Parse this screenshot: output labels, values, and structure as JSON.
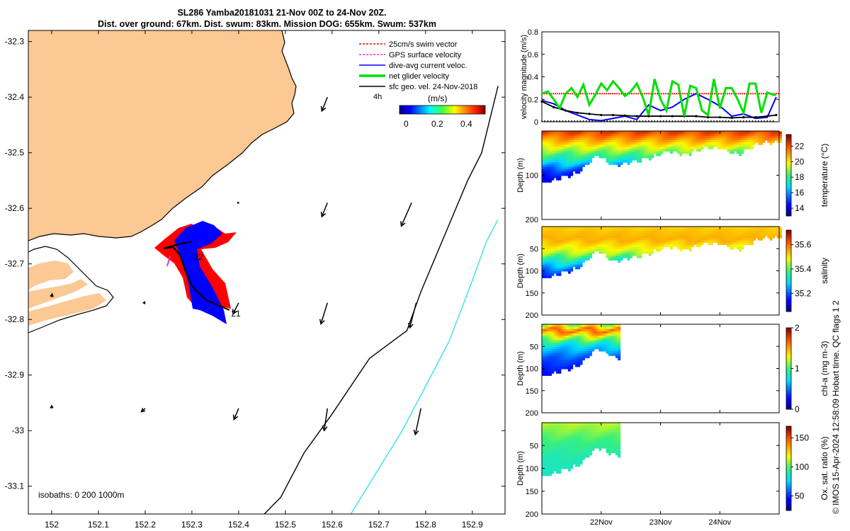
{
  "title_line1": "SL286 Yamba20181031 21-Nov 00Z to 24-Nov 20Z.",
  "title_line2": "Dist. over ground: 67km. Dist. swum: 83km. Mission DOG: 655km. Swum: 537km",
  "side_stamp": "© IMOS 15-Apr-2024 12:58:09 Hobart time. QC flags 1  2",
  "colors": {
    "land": "#fcc893",
    "coast": "#000000",
    "iso200": "#000000",
    "iso1000": "#3ae0e8",
    "swim": "#ff0000",
    "gps": "#ff22dd",
    "current": "#0000ff",
    "net": "#00e000",
    "geo": "#000000"
  },
  "chart_data": [
    {
      "id": "map",
      "type": "scatter",
      "xlim": [
        151.95,
        152.97
      ],
      "ylim": [
        -33.15,
        -32.28
      ],
      "xticks": [
        "152",
        "152.1",
        "152.2",
        "152.3",
        "152.4",
        "152.5",
        "152.6",
        "152.7",
        "152.8",
        "152.9"
      ],
      "yticks": [
        "-32.3",
        "-32.4",
        "-32.5",
        "-32.6",
        "-32.7",
        "-32.8",
        "-32.9",
        "-33",
        "-33.1"
      ],
      "legend": [
        {
          "label": "25cm/s swim vector",
          "color": "#ff0000",
          "dashed": true
        },
        {
          "label": "GPS surface velocity",
          "color": "#ff22dd",
          "dashed": true
        },
        {
          "label": "dive-avg current veloc.",
          "color": "#0000ff",
          "dashed": false
        },
        {
          "label": "net glider velocity",
          "color": "#00e000",
          "dashed": false
        },
        {
          "label": "sfc geo. vel. 24-Nov-2018",
          "color": "#000000",
          "dashed": false
        }
      ],
      "legend_extra": "4h",
      "colorbar_title": "(m/s)",
      "colorbar_ticks": [
        "0",
        "0.2",
        "0.4"
      ],
      "isobaths_label": "isobaths: 0   200  1000m",
      "track_labels": [
        {
          "text": "22",
          "lon": 152.31,
          "lat": -32.685
        },
        {
          "text": "21",
          "lon": 152.39,
          "lat": -32.787
        }
      ],
      "glider_track": [
        [
          152.38,
          -32.783
        ],
        [
          152.33,
          -32.765
        ],
        [
          152.3,
          -32.74
        ],
        [
          152.285,
          -32.71
        ],
        [
          152.275,
          -32.685
        ],
        [
          152.26,
          -32.67
        ],
        [
          152.24,
          -32.672
        ],
        [
          152.27,
          -32.665
        ],
        [
          152.3,
          -32.66
        ]
      ],
      "geo_arrows": [
        {
          "lon": 152.59,
          "lat": -32.4,
          "dlon": -0.012,
          "dlat": -0.025
        },
        {
          "lon": 152.59,
          "lat": -32.59,
          "dlon": -0.012,
          "dlat": -0.025
        },
        {
          "lon": 152.77,
          "lat": -32.59,
          "dlon": -0.022,
          "dlat": -0.042
        },
        {
          "lon": 152.4,
          "lat": -32.77,
          "dlon": -0.012,
          "dlat": -0.02
        },
        {
          "lon": 152.59,
          "lat": -32.77,
          "dlon": -0.014,
          "dlat": -0.038
        },
        {
          "lon": 152.78,
          "lat": -32.77,
          "dlon": -0.014,
          "dlat": -0.045
        },
        {
          "lon": 152.0,
          "lat": -32.96,
          "dlon": 0.0,
          "dlat": 0.005
        },
        {
          "lon": 152.2,
          "lat": -32.96,
          "dlon": -0.008,
          "dlat": -0.006
        },
        {
          "lon": 152.4,
          "lat": -32.96,
          "dlon": -0.01,
          "dlat": -0.02
        },
        {
          "lon": 152.59,
          "lat": -32.96,
          "dlon": -0.007,
          "dlat": -0.04
        },
        {
          "lon": 152.79,
          "lat": -32.96,
          "dlon": -0.012,
          "dlat": -0.047
        },
        {
          "lon": 152.0,
          "lat": -32.76,
          "dlon": 0.001,
          "dlat": 0.006
        },
        {
          "lon": 152.2,
          "lat": -32.77,
          "dlon": -0.004,
          "dlat": 0.0
        },
        {
          "lon": 152.4,
          "lat": -32.59,
          "dlon": 0.0,
          "dlat": 0.0
        }
      ],
      "isobath_200": [
        [
          152.455,
          -33.15
        ],
        [
          152.49,
          -33.12
        ],
        [
          152.54,
          -33.04
        ],
        [
          152.6,
          -32.97
        ],
        [
          152.68,
          -32.87
        ],
        [
          152.76,
          -32.82
        ],
        [
          152.79,
          -32.75
        ],
        [
          152.89,
          -32.55
        ],
        [
          152.92,
          -32.5
        ],
        [
          152.955,
          -32.38
        ]
      ],
      "isobath_1000": [
        [
          152.64,
          -33.15
        ],
        [
          152.75,
          -33.0
        ],
        [
          152.85,
          -32.84
        ],
        [
          152.9,
          -32.73
        ],
        [
          152.93,
          -32.66
        ],
        [
          152.955,
          -32.62
        ]
      ]
    },
    {
      "id": "velocity",
      "type": "line",
      "ylabel": "velocity magnitude (m/s)",
      "xlim": [
        21.0,
        25.0
      ],
      "ylim": [
        0,
        0.8
      ],
      "yticks": [
        "0",
        "0.2",
        "0.4",
        "0.6",
        "0.8"
      ],
      "series": [
        {
          "color": "#ff0000",
          "dashed": true,
          "x": [
            21.0,
            25.0
          ],
          "y": [
            0.25,
            0.25
          ]
        },
        {
          "color": "#0000ff",
          "x": [
            21.0,
            21.2,
            21.4,
            21.6,
            21.8,
            22.0,
            22.2,
            22.4,
            22.6,
            22.8,
            23.0,
            23.2,
            23.4,
            23.6,
            23.8,
            24.0,
            24.2,
            24.4,
            24.6,
            24.8,
            24.95
          ],
          "y": [
            0.19,
            0.16,
            0.1,
            0.06,
            0.02,
            0.01,
            0.03,
            0.05,
            0.02,
            0.15,
            0.1,
            0.13,
            0.2,
            0.25,
            0.2,
            0.14,
            0.05,
            0.07,
            0.03,
            0.04,
            0.22
          ]
        },
        {
          "color": "#000000",
          "x": [
            21.0,
            21.2,
            21.4,
            21.6,
            21.8,
            22.0,
            22.2,
            22.4,
            22.6,
            22.8,
            23.0,
            23.2,
            23.4,
            23.6,
            23.8,
            24.0,
            24.2,
            24.4,
            24.6,
            24.8,
            24.95
          ],
          "y": [
            0.18,
            0.13,
            0.1,
            0.08,
            0.07,
            0.06,
            0.06,
            0.055,
            0.05,
            0.05,
            0.05,
            0.05,
            0.05,
            0.05,
            0.04,
            0.04,
            0.035,
            0.04,
            0.04,
            0.05,
            0.06
          ]
        },
        {
          "color": "#00e000",
          "x": [
            21.0,
            21.1,
            21.2,
            21.3,
            21.4,
            21.5,
            21.6,
            21.7,
            21.8,
            21.9,
            22.0,
            22.1,
            22.2,
            22.3,
            22.4,
            22.5,
            22.6,
            22.7,
            22.8,
            22.9,
            23.0,
            23.1,
            23.2,
            23.3,
            23.4,
            23.5,
            23.6,
            23.7,
            23.8,
            23.9,
            24.0,
            24.1,
            24.2,
            24.3,
            24.4,
            24.5,
            24.6,
            24.7,
            24.8,
            24.9,
            24.95
          ],
          "y": [
            0.25,
            0.27,
            0.2,
            0.12,
            0.25,
            0.3,
            0.22,
            0.33,
            0.15,
            0.24,
            0.34,
            0.28,
            0.36,
            0.3,
            0.23,
            0.27,
            0.34,
            0.22,
            0.06,
            0.38,
            0.2,
            0.1,
            0.36,
            0.33,
            0.05,
            0.32,
            0.3,
            0.1,
            0.06,
            0.38,
            0.12,
            0.3,
            0.3,
            0.2,
            0.08,
            0.34,
            0.34,
            0.08,
            0.26,
            0.24,
            0.24
          ]
        }
      ]
    },
    {
      "id": "temperature",
      "type": "heatmap",
      "ylabel": "Depth (m)",
      "cbar_label": "temperature (°C)",
      "ylim": [
        0,
        200
      ],
      "yticks": [
        "100",
        "200"
      ],
      "clim": [
        13,
        23.5
      ],
      "cticks": [
        "14",
        "16",
        "18",
        "20",
        "22"
      ],
      "cmap": "parula",
      "x_end": 25.0,
      "depth_profile": [
        [
          21.0,
          120
        ],
        [
          21.3,
          105
        ],
        [
          21.6,
          95
        ],
        [
          21.9,
          55
        ],
        [
          22.2,
          80
        ],
        [
          22.5,
          70
        ],
        [
          22.8,
          62
        ],
        [
          23.1,
          45
        ],
        [
          23.4,
          55
        ],
        [
          23.7,
          40
        ],
        [
          24.0,
          40
        ],
        [
          24.3,
          55
        ],
        [
          24.6,
          30
        ],
        [
          24.9,
          25
        ]
      ],
      "layers": [
        [
          0,
          22.5
        ],
        [
          20,
          21
        ],
        [
          45,
          19
        ],
        [
          70,
          17
        ],
        [
          90,
          15
        ],
        [
          120,
          13.5
        ]
      ]
    },
    {
      "id": "salinity",
      "type": "heatmap",
      "ylabel": "Depth (m)",
      "cbar_label": "salinity",
      "ylim": [
        0,
        200
      ],
      "yticks": [
        "50",
        "100",
        "150",
        "200"
      ],
      "clim": [
        35.05,
        35.72
      ],
      "cticks": [
        "35.2",
        "35.4",
        "35.6"
      ],
      "cmap": "parula",
      "x_end": 25.0,
      "depth_profile": [
        [
          21.0,
          120
        ],
        [
          21.3,
          105
        ],
        [
          21.6,
          95
        ],
        [
          21.9,
          55
        ],
        [
          22.2,
          80
        ],
        [
          22.5,
          70
        ],
        [
          22.8,
          62
        ],
        [
          23.1,
          45
        ],
        [
          23.4,
          55
        ],
        [
          23.7,
          40
        ],
        [
          24.0,
          40
        ],
        [
          24.3,
          55
        ],
        [
          24.6,
          30
        ],
        [
          24.9,
          25
        ]
      ],
      "layers": [
        [
          0,
          35.52
        ],
        [
          30,
          35.55
        ],
        [
          60,
          35.45
        ],
        [
          80,
          35.32
        ],
        [
          100,
          35.2
        ],
        [
          120,
          35.1
        ]
      ]
    },
    {
      "id": "chla",
      "type": "heatmap",
      "ylabel": "Depth (m)",
      "cbar_label": "chl-a (mg m-3)",
      "ylim": [
        0,
        200
      ],
      "yticks": [
        "50",
        "100",
        "150",
        "200"
      ],
      "clim": [
        0,
        2
      ],
      "cticks": [
        "0",
        "1",
        "2"
      ],
      "cmap": "parula",
      "x_end": 22.28,
      "depth_profile": [
        [
          21.0,
          120
        ],
        [
          21.3,
          105
        ],
        [
          21.6,
          95
        ],
        [
          21.9,
          55
        ],
        [
          22.28,
          80
        ]
      ],
      "layers": [
        [
          0,
          1.1
        ],
        [
          15,
          1.7
        ],
        [
          30,
          1.2
        ],
        [
          50,
          0.7
        ],
        [
          80,
          0.4
        ],
        [
          120,
          0.2
        ]
      ]
    },
    {
      "id": "oxygen",
      "type": "heatmap",
      "ylabel": "Depth (m)",
      "cbar_label": "Ox. sat. ratio (%)",
      "ylim": [
        0,
        200
      ],
      "yticks": [
        "50",
        "100",
        "150",
        "200"
      ],
      "clim": [
        25,
        170
      ],
      "cticks": [
        "50",
        "100",
        "150"
      ],
      "cmap": "parula",
      "x_end": 22.28,
      "depth_profile": [
        [
          21.0,
          120
        ],
        [
          21.3,
          105
        ],
        [
          21.6,
          95
        ],
        [
          21.9,
          55
        ],
        [
          22.28,
          75
        ]
      ],
      "layers": [
        [
          0,
          112
        ],
        [
          20,
          105
        ],
        [
          45,
          95
        ],
        [
          80,
          88
        ],
        [
          120,
          85
        ]
      ]
    }
  ],
  "time_axis": {
    "xlim": [
      21.0,
      25.0
    ],
    "ticks": [
      {
        "x": 22,
        "label": "22Nov"
      },
      {
        "x": 23,
        "label": "23Nov"
      },
      {
        "x": 24,
        "label": "24Nov"
      }
    ]
  }
}
